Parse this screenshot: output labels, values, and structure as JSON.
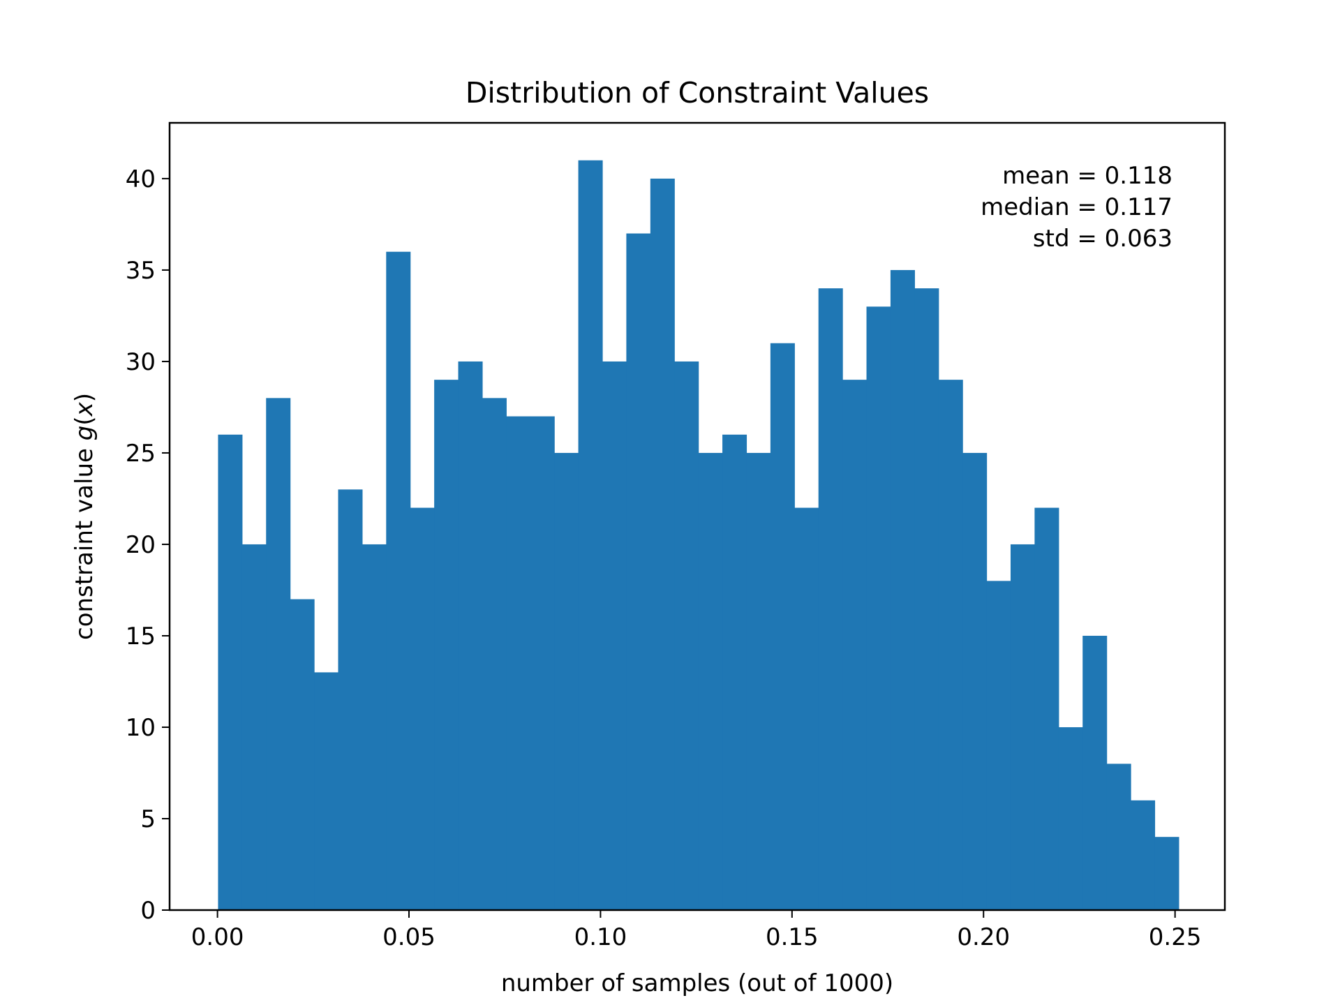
{
  "chart_data": {
    "type": "bar",
    "title": "Distribution of Constraint Values",
    "xlabel": "number of samples (out of 1000)",
    "ylabel_prefix": "constraint value ",
    "ylabel_math": "g",
    "ylabel_suffix_open": "(",
    "ylabel_math_var": "x",
    "ylabel_suffix_close": ")",
    "xlim": [
      -0.0125,
      0.263
    ],
    "ylim": [
      0,
      43.05
    ],
    "x_ticks": [
      0.0,
      0.05,
      0.1,
      0.15,
      0.2,
      0.25
    ],
    "x_tick_labels": [
      "0.00",
      "0.05",
      "0.10",
      "0.15",
      "0.20",
      "0.25"
    ],
    "y_ticks": [
      0,
      5,
      10,
      15,
      20,
      25,
      30,
      35,
      40
    ],
    "y_tick_labels": [
      "0",
      "5",
      "10",
      "15",
      "20",
      "25",
      "30",
      "35",
      "40"
    ],
    "bin_start": 0.00015,
    "bin_width": 0.00627,
    "counts": [
      26,
      20,
      28,
      17,
      13,
      23,
      20,
      36,
      22,
      29,
      30,
      28,
      27,
      27,
      25,
      41,
      30,
      37,
      40,
      30,
      25,
      26,
      25,
      31,
      22,
      34,
      29,
      33,
      35,
      34,
      29,
      25,
      18,
      20,
      22,
      10,
      15,
      8,
      6,
      4
    ],
    "bar_color": "#1f77b4",
    "grid": false,
    "annotation": {
      "placement": "top-right",
      "lines": [
        "mean = 0.118",
        "median = 0.117",
        "std = 0.063"
      ]
    }
  }
}
